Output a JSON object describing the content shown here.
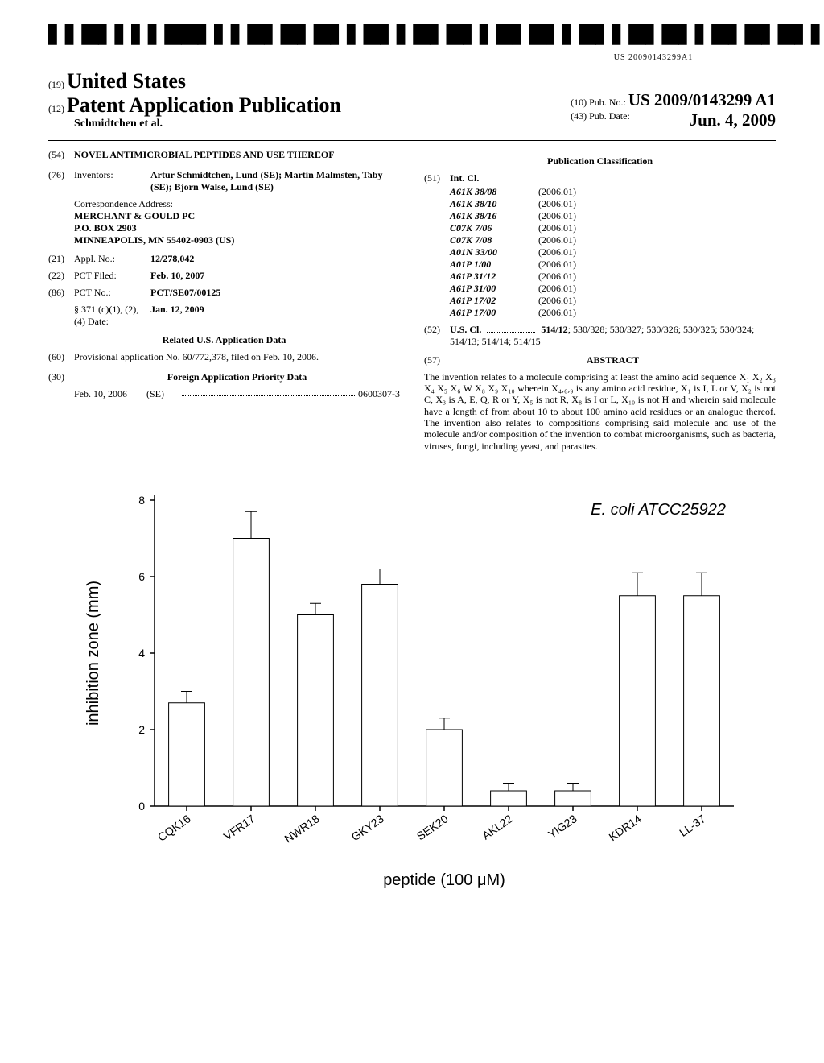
{
  "barcode_text": "US 20090143299A1",
  "header": {
    "country_prefix": "(19)",
    "country": "United States",
    "pubtype_prefix": "(12)",
    "pubtype": "Patent Application Publication",
    "authors": "Schmidtchen et al.",
    "pubno_prefix": "(10)",
    "pubno_label": "Pub. No.:",
    "pubno": "US 2009/0143299 A1",
    "pubdate_prefix": "(43)",
    "pubdate_label": "Pub. Date:",
    "pubdate": "Jun. 4, 2009"
  },
  "title_num": "(54)",
  "title": "NOVEL ANTIMICROBIAL PEPTIDES AND USE THEREOF",
  "inventors_num": "(76)",
  "inventors_label": "Inventors:",
  "inventors": "Artur Schmidtchen, Lund (SE); Martin Malmsten, Taby (SE); Bjorn Walse, Lund (SE)",
  "corr_label": "Correspondence Address:",
  "corr": {
    "l1": "MERCHANT & GOULD PC",
    "l2": "P.O. BOX 2903",
    "l3": "MINNEAPOLIS, MN 55402-0903 (US)"
  },
  "appl_num": "(21)",
  "appl_label": "Appl. No.:",
  "appl": "12/278,042",
  "pctfiled_num": "(22)",
  "pctfiled_label": "PCT Filed:",
  "pctfiled": "Feb. 10, 2007",
  "pctno_num": "(86)",
  "pctno_label": "PCT No.:",
  "pctno": "PCT/SE07/00125",
  "s371_label": "§ 371 (c)(1), (2), (4) Date:",
  "s371": "Jan. 12, 2009",
  "related_heading": "Related U.S. Application Data",
  "provisional_num": "(60)",
  "provisional": "Provisional application No. 60/772,378, filed on Feb. 10, 2006.",
  "foreign_heading_num": "(30)",
  "foreign_heading": "Foreign Application Priority Data",
  "foreign_date": "Feb. 10, 2006",
  "foreign_country": "(SE)",
  "foreign_appno": "0600307-3",
  "pubclass_heading": "Publication Classification",
  "intcl_num": "(51)",
  "intcl_label": "Int. Cl.",
  "intcl": [
    {
      "code": "A61K 38/08",
      "year": "(2006.01)"
    },
    {
      "code": "A61K 38/10",
      "year": "(2006.01)"
    },
    {
      "code": "A61K 38/16",
      "year": "(2006.01)"
    },
    {
      "code": "C07K 7/06",
      "year": "(2006.01)"
    },
    {
      "code": "C07K 7/08",
      "year": "(2006.01)"
    },
    {
      "code": "A01N 33/00",
      "year": "(2006.01)"
    },
    {
      "code": "A01P 1/00",
      "year": "(2006.01)"
    },
    {
      "code": "A61P 31/12",
      "year": "(2006.01)"
    },
    {
      "code": "A61P 31/00",
      "year": "(2006.01)"
    },
    {
      "code": "A61P 17/02",
      "year": "(2006.01)"
    },
    {
      "code": "A61P 17/00",
      "year": "(2006.01)"
    }
  ],
  "uscl_num": "(52)",
  "uscl_label": "U.S. Cl.",
  "uscl_bold": "514/12",
  "uscl": "; 530/328; 530/327; 530/326; 530/325; 530/324; 514/13; 514/14; 514/15",
  "abstract_num": "(57)",
  "abstract_label": "ABSTRACT",
  "abstract": "The invention relates to a molecule comprising at least the amino acid sequence X₁ X₂ X₃ X₄ X₅ X₆ W X₈ X₉ X₁₀ wherein X₄,₆,₉ is any amino acid residue, X₁ is I, L or V, X₂ is not C, X₃ is A, E, Q, R or Y, X₅ is not R, X₈ is I or L, X₁₀ is not H and wherein said molecule have a length of from about 10 to about 100 amino acid residues or an analogue thereof. The invention also relates to compositions comprising said molecule and use of the molecule and/or composition of the invention to combat microorganisms, such as bacteria, viruses, fungi, including yeast, and parasites.",
  "chart": {
    "type": "bar",
    "title": "E. coli ATCC25922",
    "title_fontsize": 20,
    "title_style": "italic",
    "ylabel": "inhibition zone (mm)",
    "xlabel": "peptide (100 μM)",
    "label_fontsize": 20,
    "categories": [
      "CQK16",
      "VFR17",
      "NWR18",
      "GKY23",
      "SEK20",
      "AKL22",
      "YIG23",
      "KDR14",
      "LL-37"
    ],
    "values": [
      2.7,
      7.0,
      5.0,
      5.8,
      2.0,
      0.4,
      0.4,
      5.5,
      5.5
    ],
    "errors": [
      0.3,
      0.7,
      0.3,
      0.4,
      0.3,
      0.2,
      0.2,
      0.6,
      0.6
    ],
    "ylim": [
      0,
      8
    ],
    "ytick_step": 2,
    "bar_fill": "#ffffff",
    "bar_stroke": "#000000",
    "bar_stroke_width": 1,
    "bar_width": 0.56,
    "axis_color": "#000000",
    "background": "#ffffff",
    "tick_fontsize": 14
  }
}
